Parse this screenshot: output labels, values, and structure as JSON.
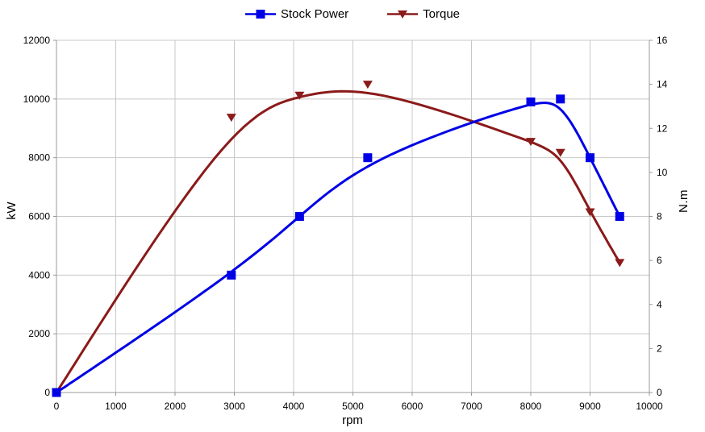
{
  "chart_data": {
    "type": "line",
    "smoothing": "cubic-b-spline",
    "legend_position": "top",
    "grid": true,
    "x": [
      0,
      2950,
      4100,
      5250,
      8000,
      8500,
      9000,
      9500
    ],
    "x_label": "rpm",
    "x_range": [
      0,
      10000
    ],
    "x_ticks": [
      0,
      1000,
      2000,
      3000,
      4000,
      5000,
      6000,
      7000,
      8000,
      9000,
      10000
    ],
    "y_left_label": "kW",
    "y_left_range": [
      0,
      12000
    ],
    "y_left_ticks": [
      0,
      2000,
      4000,
      6000,
      8000,
      10000,
      12000
    ],
    "y_right_label": "N.m",
    "y_right_range": [
      0,
      16
    ],
    "y_right_ticks": [
      0,
      2,
      4,
      6,
      8,
      10,
      12,
      14,
      16
    ],
    "series": [
      {
        "name": "Stock Power",
        "axis": "left",
        "marker": "square",
        "color": "#0000e6",
        "values": [
          0,
          4000,
          6000,
          8000,
          9900,
          10000,
          8000,
          6000
        ]
      },
      {
        "name": "Torque",
        "axis": "right",
        "marker": "triangle-down",
        "color": "#8b1a1a",
        "values": [
          0,
          12.5,
          13.5,
          14,
          11.4,
          10.9,
          8.2,
          5.9
        ]
      }
    ]
  },
  "colors": {
    "background": "#ffffff",
    "grid": "#c8c8c8",
    "axis": "#999999",
    "text": "#000000"
  }
}
